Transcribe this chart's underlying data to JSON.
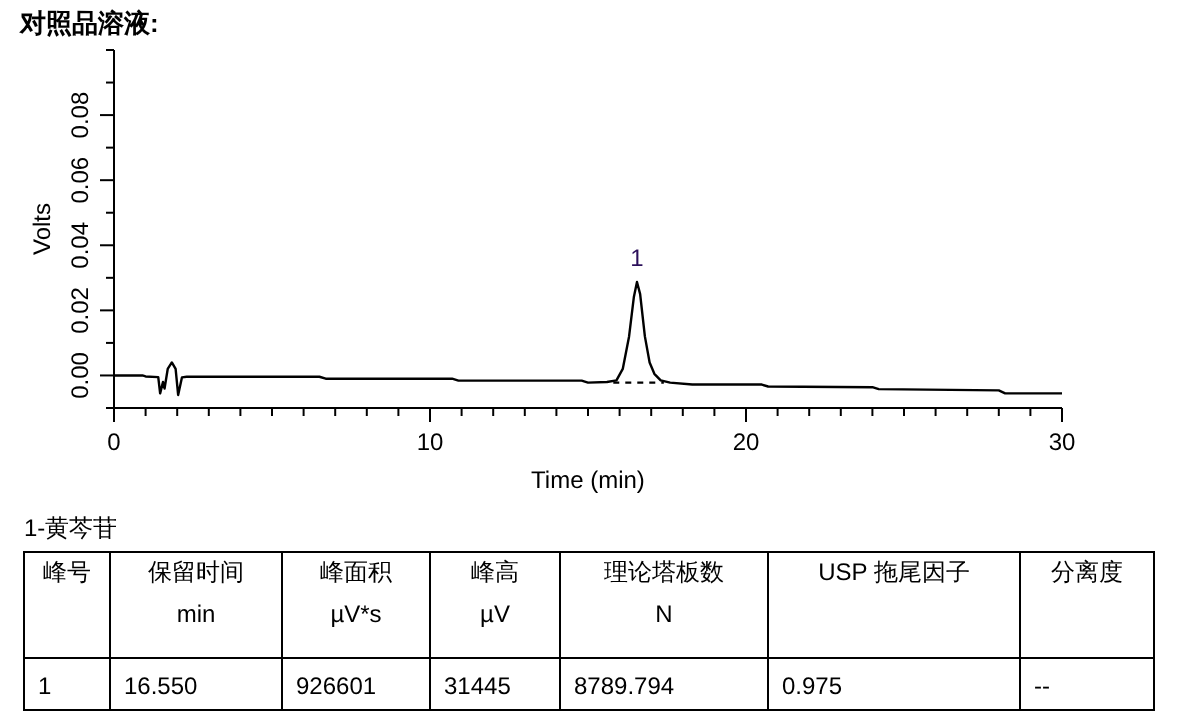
{
  "chart_data": {
    "type": "line",
    "title": "对照品溶液:",
    "xlabel": "Time (min)",
    "ylabel": "Volts",
    "xlim": [
      0,
      30
    ],
    "ylim": [
      -0.01,
      0.1
    ],
    "xticks": [
      0,
      {
        "value": 1,
        "label": null
      },
      {
        "value": 2,
        "label": null
      },
      {
        "value": 3,
        "label": null
      },
      {
        "value": 4,
        "label": null
      },
      {
        "value": 5,
        "label": null
      },
      {
        "value": 6,
        "label": null
      },
      {
        "value": 7,
        "label": null
      },
      {
        "value": 8,
        "label": null
      },
      {
        "value": 9,
        "label": null
      },
      10,
      {
        "value": 11,
        "label": null
      },
      {
        "value": 12,
        "label": null
      },
      {
        "value": 13,
        "label": null
      },
      {
        "value": 14,
        "label": null
      },
      {
        "value": 15,
        "label": null
      },
      {
        "value": 16,
        "label": null
      },
      {
        "value": 17,
        "label": null
      },
      {
        "value": 18,
        "label": null
      },
      {
        "value": 19,
        "label": null
      },
      20,
      {
        "value": 21,
        "label": null
      },
      {
        "value": 22,
        "label": null
      },
      {
        "value": 23,
        "label": null
      },
      {
        "value": 24,
        "label": null
      },
      {
        "value": 25,
        "label": null
      },
      {
        "value": 26,
        "label": null
      },
      {
        "value": 27,
        "label": null
      },
      {
        "value": 28,
        "label": null
      },
      {
        "value": 29,
        "label": null
      },
      30
    ],
    "yticks": [
      {
        "value": -0.01,
        "label": null
      },
      {
        "value": 0,
        "label": "0.00"
      },
      {
        "value": 0.01,
        "label": null
      },
      {
        "value": 0.02,
        "label": "0.02"
      },
      {
        "value": 0.03,
        "label": null
      },
      {
        "value": 0.04,
        "label": "0.04"
      },
      {
        "value": 0.05,
        "label": null
      },
      {
        "value": 0.06,
        "label": "0.06"
      },
      {
        "value": 0.07,
        "label": null
      },
      {
        "value": 0.08,
        "label": "0.08"
      },
      {
        "value": 0.09,
        "label": null
      },
      {
        "value": 0.1,
        "label": null
      }
    ],
    "grid": false,
    "series": [
      {
        "color": "#000000",
        "line_style": "solid",
        "x": [
          0,
          0.9,
          1.0,
          1.4,
          1.46,
          1.55,
          1.6,
          1.7,
          1.83,
          1.95,
          2.03,
          2.15,
          2.3,
          4,
          6.5,
          6.7,
          10.7,
          10.9,
          14.8,
          15,
          15.6,
          15.9,
          16.1,
          16.3,
          16.45,
          16.55,
          16.65,
          16.8,
          16.95,
          17.1,
          17.3,
          17.6,
          18.3,
          20.5,
          20.7,
          24,
          24.2,
          28,
          28.2,
          30
        ],
        "values": [
          0,
          0,
          -0.0003,
          -0.0005,
          -0.0055,
          -0.002,
          -0.004,
          0.002,
          0.004,
          0.002,
          -0.006,
          -0.0006,
          -0.0004,
          -0.0004,
          -0.0004,
          -0.001,
          -0.001,
          -0.0016,
          -0.0016,
          -0.0022,
          -0.002,
          -0.0015,
          0.002,
          0.012,
          0.024,
          0.0287,
          0.025,
          0.012,
          0.004,
          0.0005,
          -0.0015,
          -0.0022,
          -0.0028,
          -0.0028,
          -0.0034,
          -0.0036,
          -0.0042,
          -0.0046,
          -0.0055,
          -0.0055
        ]
      },
      {
        "color": "#000000",
        "line_style": "dashed",
        "x": [
          15.8,
          17.4
        ],
        "values": [
          -0.0022,
          -0.0022
        ]
      }
    ],
    "annotations": [
      {
        "text": "1",
        "x": 16.55,
        "y": 0.0287
      },
      "1-黄芩苷",
      "峰号",
      "保留时间\nmin",
      "峰面积\nµV*s",
      "峰高\nµV",
      "理论塔板数\nN",
      "USP 拖尾因子",
      "分离度",
      "1",
      "16.550",
      "926601",
      "31445",
      "8789.794",
      "0.975",
      "--"
    ]
  }
}
